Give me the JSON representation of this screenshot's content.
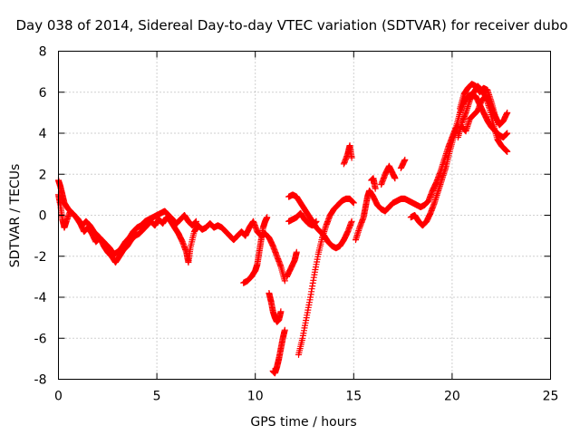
{
  "chart_data": {
    "type": "scatter",
    "title": "Day 038 of 2014, Sidereal Day-to-day VTEC variation (SDTVAR) for receiver dubo",
    "xlabel": "GPS time / hours",
    "ylabel": "SDTVAR / TECUs",
    "xlim": [
      0,
      25
    ],
    "ylim": [
      -8,
      8
    ],
    "xticks": [
      0,
      5,
      10,
      15,
      20,
      25
    ],
    "yticks": [
      -8,
      -6,
      -4,
      -2,
      0,
      2,
      4,
      6,
      8
    ],
    "grid": true,
    "marker": "+",
    "color": "#ff0000",
    "series": [
      {
        "name": "SDTVAR",
        "traces": [
          [
            [
              0.0,
              1.7
            ],
            [
              0.1,
              1.4
            ],
            [
              0.2,
              1.0
            ],
            [
              0.3,
              0.6
            ],
            [
              0.5,
              0.3
            ],
            [
              0.7,
              0.1
            ],
            [
              0.9,
              -0.1
            ],
            [
              1.1,
              -0.4
            ],
            [
              1.3,
              -0.8
            ],
            [
              1.5,
              -0.6
            ],
            [
              1.7,
              -0.9
            ],
            [
              1.9,
              -1.3
            ],
            [
              2.1,
              -1.1
            ],
            [
              2.3,
              -1.5
            ],
            [
              2.5,
              -1.8
            ],
            [
              2.7,
              -2.0
            ],
            [
              2.9,
              -2.3
            ],
            [
              3.1,
              -2.0
            ],
            [
              3.3,
              -1.7
            ],
            [
              3.5,
              -1.5
            ],
            [
              3.7,
              -1.2
            ],
            [
              3.9,
              -1.0
            ],
            [
              4.1,
              -0.9
            ],
            [
              4.3,
              -0.7
            ],
            [
              4.5,
              -0.5
            ],
            [
              4.7,
              -0.3
            ],
            [
              4.9,
              -0.5
            ],
            [
              5.1,
              -0.2
            ],
            [
              5.3,
              -0.4
            ],
            [
              5.5,
              -0.1
            ],
            [
              5.7,
              -0.3
            ],
            [
              5.9,
              -0.6
            ],
            [
              6.1,
              -0.9
            ],
            [
              6.3,
              -1.3
            ],
            [
              6.5,
              -1.8
            ],
            [
              6.6,
              -2.3
            ],
            [
              6.7,
              -1.6
            ],
            [
              6.9,
              -0.8
            ],
            [
              7.1,
              -0.5
            ],
            [
              7.3,
              -0.7
            ],
            [
              7.5,
              -0.6
            ],
            [
              7.7,
              -0.4
            ],
            [
              7.9,
              -0.6
            ],
            [
              8.1,
              -0.5
            ],
            [
              8.3,
              -0.6
            ],
            [
              8.5,
              -0.8
            ],
            [
              8.7,
              -1.0
            ],
            [
              8.9,
              -1.2
            ],
            [
              9.1,
              -1.0
            ],
            [
              9.3,
              -0.8
            ],
            [
              9.5,
              -1.0
            ],
            [
              9.7,
              -0.6
            ],
            [
              9.9,
              -0.3
            ],
            [
              10.1,
              -0.8
            ],
            [
              10.3,
              -1.0
            ],
            [
              10.5,
              -0.9
            ],
            [
              10.7,
              -1.1
            ],
            [
              10.9,
              -1.5
            ],
            [
              11.1,
              -2.0
            ],
            [
              11.3,
              -2.5
            ],
            [
              11.5,
              -3.2
            ]
          ],
          [
            [
              0.0,
              1.0
            ],
            [
              0.1,
              0.5
            ],
            [
              0.2,
              -0.2
            ],
            [
              0.3,
              -0.6
            ],
            [
              0.4,
              -0.3
            ],
            [
              0.6,
              0.2
            ],
            [
              0.8,
              0.0
            ],
            [
              1.0,
              -0.2
            ],
            [
              1.2,
              -0.5
            ],
            [
              1.4,
              -0.3
            ],
            [
              1.6,
              -0.5
            ],
            [
              1.8,
              -0.8
            ],
            [
              2.0,
              -1.0
            ],
            [
              2.2,
              -1.2
            ],
            [
              2.4,
              -1.4
            ],
            [
              2.6,
              -1.6
            ],
            [
              2.8,
              -1.9
            ],
            [
              3.0,
              -1.8
            ],
            [
              3.2,
              -1.6
            ],
            [
              3.4,
              -1.3
            ],
            [
              3.6,
              -1.1
            ],
            [
              3.8,
              -0.8
            ],
            [
              4.0,
              -0.6
            ],
            [
              4.2,
              -0.5
            ],
            [
              4.4,
              -0.3
            ],
            [
              4.6,
              -0.2
            ],
            [
              4.8,
              -0.1
            ],
            [
              5.0,
              0.0
            ],
            [
              5.2,
              0.1
            ],
            [
              5.4,
              0.2
            ],
            [
              5.6,
              0.0
            ],
            [
              5.8,
              -0.2
            ],
            [
              6.0,
              -0.4
            ],
            [
              6.2,
              -0.2
            ],
            [
              6.4,
              0.0
            ],
            [
              6.6,
              -0.3
            ],
            [
              6.8,
              -0.5
            ],
            [
              7.0,
              -0.3
            ]
          ],
          [
            [
              9.4,
              -3.3
            ],
            [
              9.6,
              -3.2
            ],
            [
              9.8,
              -3.0
            ],
            [
              10.0,
              -2.7
            ],
            [
              10.1,
              -2.4
            ],
            [
              10.2,
              -1.8
            ],
            [
              10.3,
              -1.2
            ],
            [
              10.4,
              -0.6
            ],
            [
              10.5,
              -0.3
            ],
            [
              10.6,
              -0.1
            ]
          ],
          [
            [
              10.7,
              -3.8
            ],
            [
              10.8,
              -4.2
            ],
            [
              10.9,
              -4.7
            ],
            [
              11.0,
              -5.0
            ],
            [
              11.1,
              -5.2
            ],
            [
              11.2,
              -5.1
            ],
            [
              11.3,
              -4.7
            ]
          ],
          [
            [
              10.9,
              -7.6
            ],
            [
              11.0,
              -7.7
            ],
            [
              11.1,
              -7.4
            ],
            [
              11.2,
              -7.0
            ],
            [
              11.3,
              -6.5
            ],
            [
              11.4,
              -6.0
            ],
            [
              11.5,
              -5.6
            ]
          ],
          [
            [
              11.6,
              -3.0
            ],
            [
              11.8,
              -2.6
            ],
            [
              12.0,
              -2.2
            ],
            [
              12.1,
              -1.8
            ]
          ],
          [
            [
              11.7,
              0.9
            ],
            [
              11.9,
              1.0
            ],
            [
              12.1,
              0.9
            ],
            [
              12.3,
              0.6
            ],
            [
              12.5,
              0.3
            ],
            [
              12.7,
              0.0
            ],
            [
              12.9,
              -0.3
            ],
            [
              13.1,
              -0.6
            ],
            [
              13.3,
              -0.8
            ],
            [
              13.5,
              -1.0
            ],
            [
              13.7,
              -1.3
            ],
            [
              13.9,
              -1.5
            ],
            [
              14.1,
              -1.6
            ],
            [
              14.3,
              -1.5
            ],
            [
              14.5,
              -1.2
            ],
            [
              14.7,
              -0.8
            ],
            [
              14.9,
              -0.3
            ]
          ],
          [
            [
              11.7,
              -0.3
            ],
            [
              11.9,
              -0.2
            ],
            [
              12.1,
              -0.1
            ],
            [
              12.3,
              0.1
            ],
            [
              12.5,
              -0.2
            ],
            [
              12.7,
              -0.4
            ],
            [
              12.9,
              -0.5
            ],
            [
              13.1,
              -0.3
            ]
          ],
          [
            [
              12.2,
              -6.8
            ],
            [
              12.4,
              -6.0
            ],
            [
              12.6,
              -5.0
            ],
            [
              12.8,
              -4.0
            ],
            [
              13.0,
              -2.9
            ],
            [
              13.2,
              -1.9
            ],
            [
              13.4,
              -1.1
            ],
            [
              13.6,
              -0.5
            ],
            [
              13.8,
              0.0
            ],
            [
              14.0,
              0.3
            ],
            [
              14.2,
              0.5
            ],
            [
              14.4,
              0.7
            ],
            [
              14.6,
              0.8
            ],
            [
              14.8,
              0.8
            ],
            [
              15.0,
              0.6
            ]
          ],
          [
            [
              14.5,
              2.5
            ],
            [
              14.7,
              3.0
            ],
            [
              14.8,
              3.4
            ],
            [
              14.9,
              2.8
            ]
          ],
          [
            [
              15.1,
              -1.2
            ],
            [
              15.3,
              -0.6
            ],
            [
              15.5,
              -0.1
            ],
            [
              15.6,
              0.4
            ],
            [
              15.7,
              0.9
            ],
            [
              15.8,
              1.2
            ],
            [
              16.0,
              0.9
            ],
            [
              16.2,
              0.5
            ],
            [
              16.4,
              0.3
            ],
            [
              16.6,
              0.2
            ],
            [
              16.8,
              0.4
            ],
            [
              17.0,
              0.6
            ],
            [
              17.2,
              0.7
            ],
            [
              17.4,
              0.8
            ],
            [
              17.6,
              0.8
            ],
            [
              17.8,
              0.7
            ],
            [
              18.0,
              0.6
            ],
            [
              18.2,
              0.5
            ],
            [
              18.4,
              0.4
            ],
            [
              18.6,
              0.5
            ],
            [
              18.8,
              0.7
            ],
            [
              19.0,
              1.2
            ],
            [
              19.2,
              1.6
            ],
            [
              19.4,
              2.1
            ],
            [
              19.6,
              2.7
            ],
            [
              19.8,
              3.3
            ],
            [
              20.0,
              3.8
            ],
            [
              20.2,
              4.3
            ],
            [
              20.4,
              5.0
            ],
            [
              20.6,
              5.5
            ],
            [
              20.8,
              5.8
            ],
            [
              21.0,
              5.9
            ],
            [
              21.2,
              5.8
            ],
            [
              21.4,
              5.4
            ],
            [
              21.6,
              5.0
            ],
            [
              21.8,
              4.6
            ],
            [
              22.0,
              4.3
            ],
            [
              22.2,
              4.1
            ],
            [
              22.4,
              3.9
            ],
            [
              22.6,
              3.8
            ],
            [
              22.8,
              4.0
            ]
          ],
          [
            [
              15.9,
              1.7
            ],
            [
              16.0,
              1.8
            ],
            [
              16.1,
              1.3
            ]
          ],
          [
            [
              16.4,
              1.5
            ],
            [
              16.6,
              2.0
            ],
            [
              16.8,
              2.4
            ],
            [
              17.0,
              2.0
            ],
            [
              17.1,
              1.8
            ]
          ],
          [
            [
              17.4,
              2.3
            ],
            [
              17.6,
              2.7
            ]
          ],
          [
            [
              17.9,
              -0.1
            ],
            [
              18.1,
              0.0
            ],
            [
              18.3,
              -0.3
            ],
            [
              18.5,
              -0.5
            ],
            [
              18.7,
              -0.3
            ],
            [
              18.9,
              0.1
            ],
            [
              19.1,
              0.6
            ],
            [
              19.3,
              1.2
            ],
            [
              19.5,
              1.8
            ],
            [
              19.7,
              2.4
            ],
            [
              19.9,
              3.2
            ],
            [
              20.1,
              3.9
            ],
            [
              20.3,
              4.4
            ]
          ],
          [
            [
              20.3,
              3.8
            ],
            [
              20.5,
              4.5
            ],
            [
              20.7,
              5.0
            ],
            [
              20.9,
              5.6
            ],
            [
              21.1,
              6.0
            ],
            [
              21.3,
              6.3
            ],
            [
              21.5,
              6.1
            ],
            [
              21.7,
              5.8
            ],
            [
              21.9,
              5.2
            ],
            [
              22.1,
              4.4
            ],
            [
              22.3,
              3.7
            ],
            [
              22.5,
              3.4
            ],
            [
              22.7,
              3.2
            ],
            [
              22.8,
              3.1
            ]
          ],
          [
            [
              20.4,
              5.2
            ],
            [
              20.6,
              5.9
            ],
            [
              20.8,
              6.2
            ],
            [
              21.0,
              6.4
            ],
            [
              21.2,
              6.3
            ],
            [
              21.4,
              6.0
            ],
            [
              21.6,
              6.2
            ],
            [
              21.8,
              6.1
            ],
            [
              22.0,
              5.5
            ],
            [
              22.2,
              4.8
            ],
            [
              22.4,
              4.4
            ],
            [
              22.6,
              4.6
            ],
            [
              22.8,
              5.0
            ]
          ],
          [
            [
              20.5,
              4.3
            ],
            [
              20.7,
              4.1
            ],
            [
              20.9,
              4.7
            ],
            [
              21.1,
              4.9
            ],
            [
              21.3,
              5.1
            ],
            [
              21.5,
              5.6
            ],
            [
              21.7,
              5.8
            ],
            [
              21.9,
              5.5
            ],
            [
              22.1,
              5.0
            ],
            [
              22.3,
              4.6
            ]
          ]
        ]
      }
    ]
  }
}
